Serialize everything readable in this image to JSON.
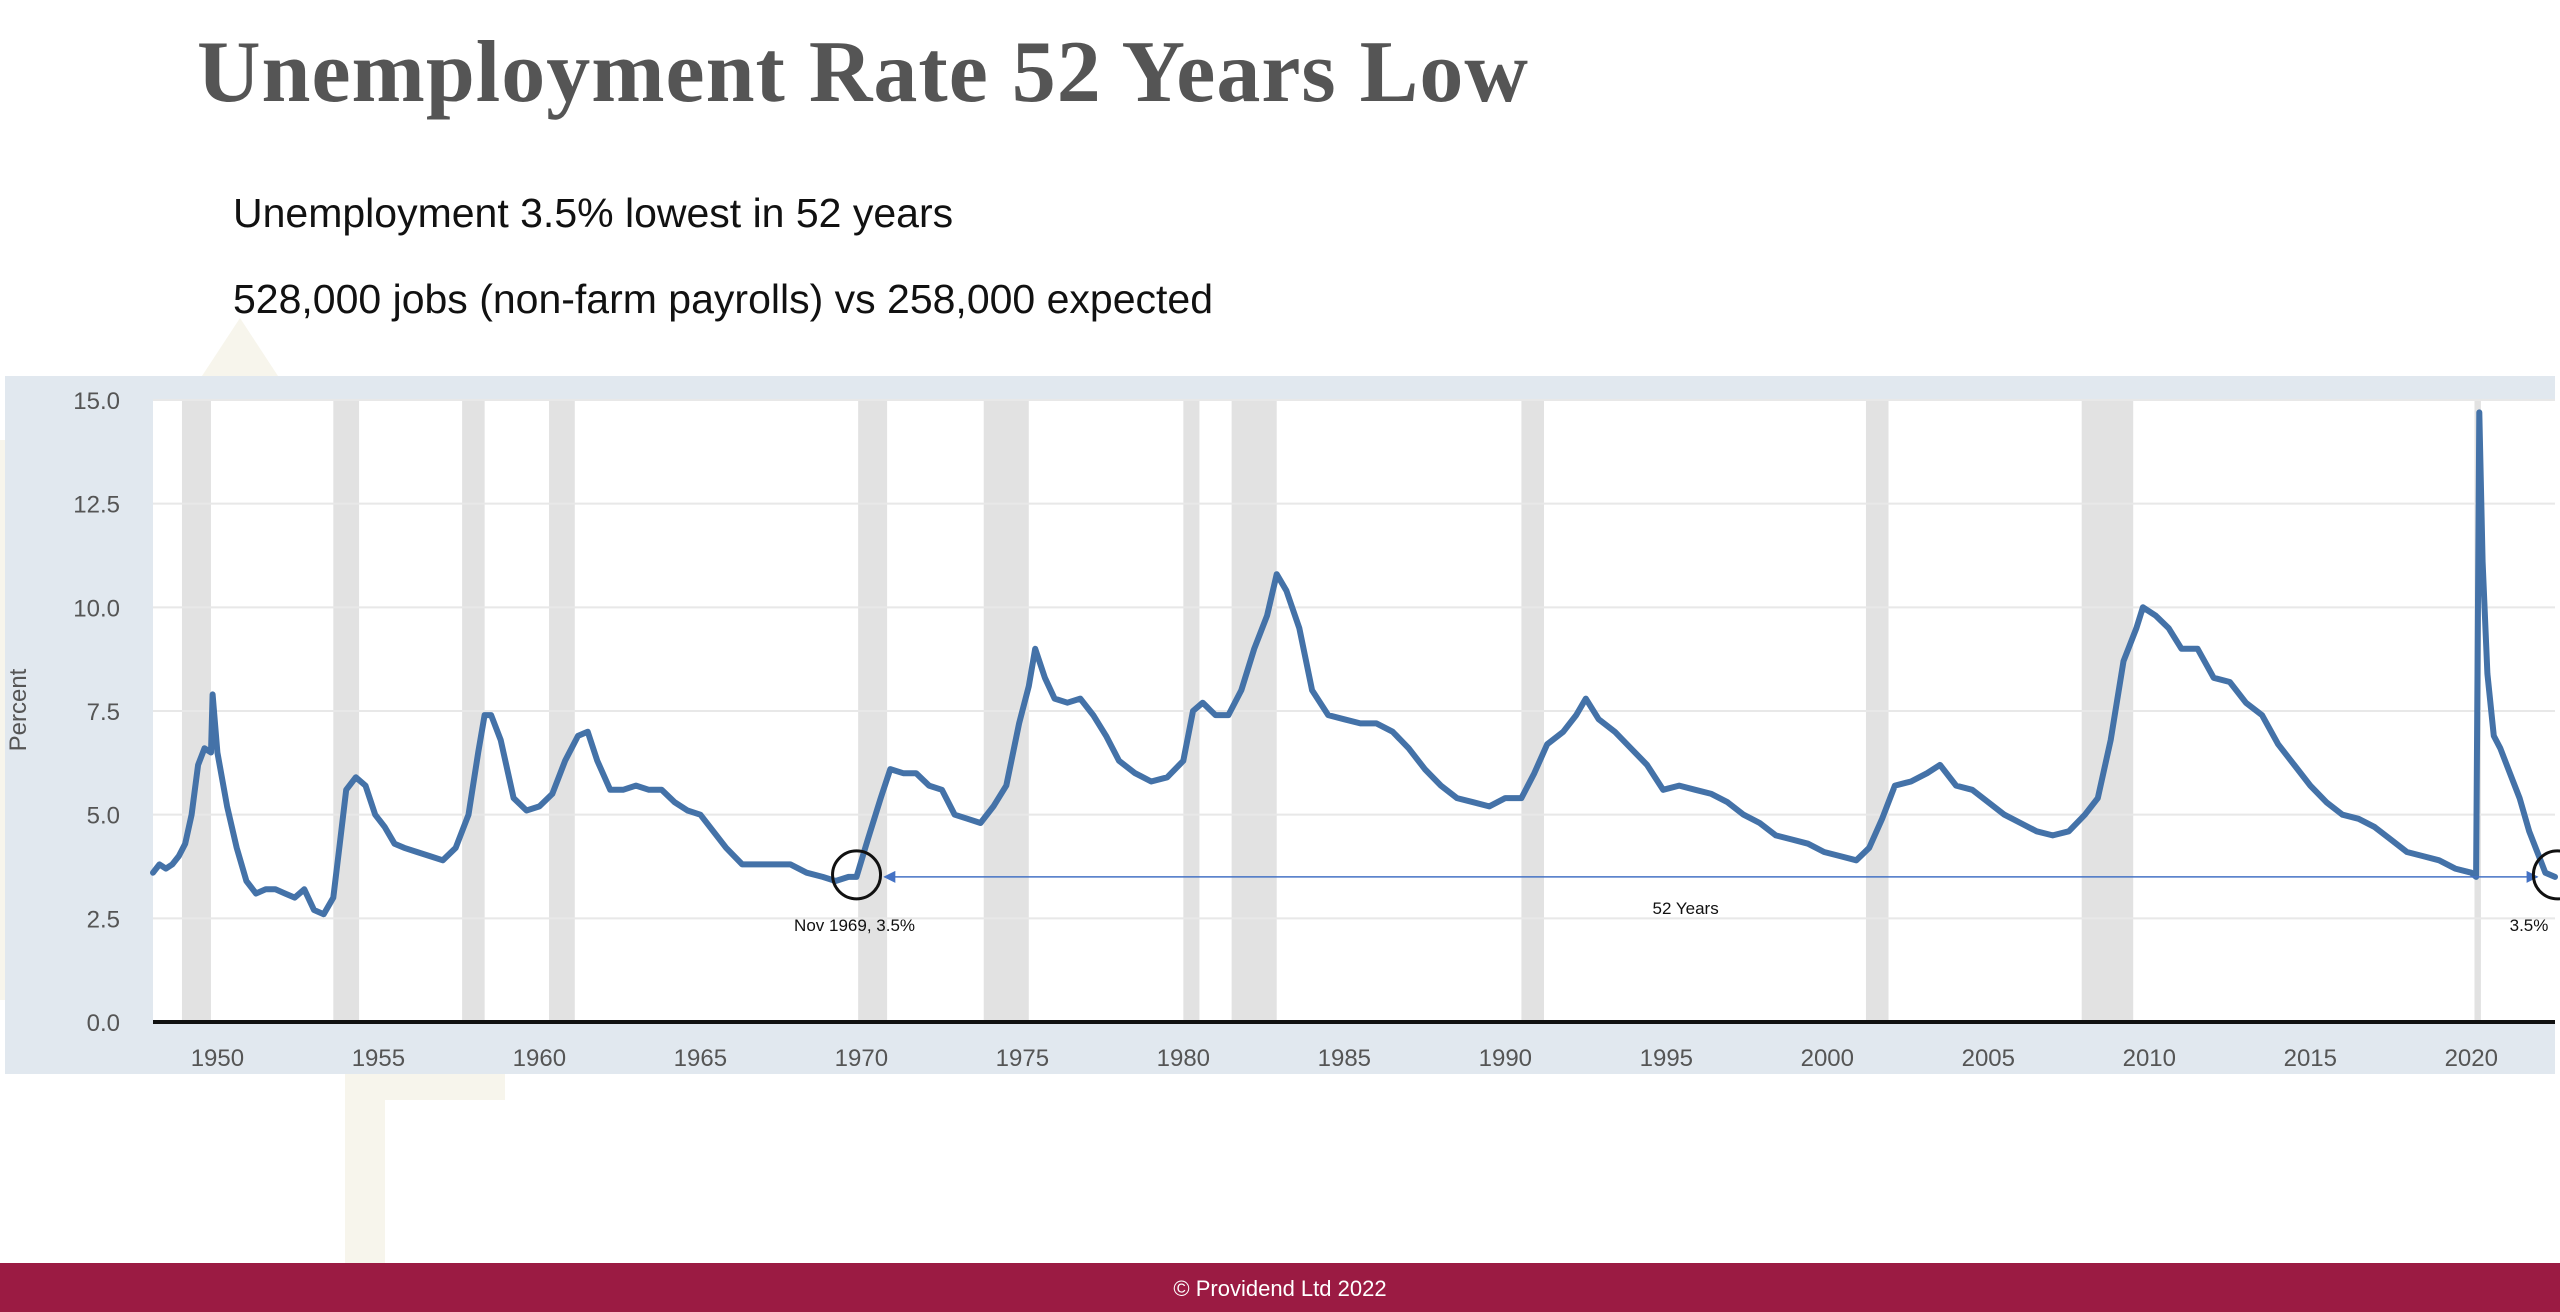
{
  "slide": {
    "title": "Unemployment Rate 52 Years Low",
    "bullets": [
      "Unemployment 3.5% lowest in 52 years",
      "528,000 jobs (non-farm payrolls) vs 258,000 expected"
    ],
    "footer": "© Providend Ltd 2022"
  },
  "colors": {
    "title": "#555555",
    "footer_bg": "#9b1b43",
    "series": "#4472a8",
    "recession": "#e2e2e2",
    "panel_bg": "#e1e8ef",
    "annotation": "#4472c4"
  },
  "chart_data": {
    "type": "line",
    "ylabel": "Percent",
    "xlabel": "",
    "ylim": [
      0,
      15
    ],
    "xlim": [
      1948,
      2022.6
    ],
    "y_ticks": [
      "15.0",
      "12.5",
      "10.0",
      "7.5",
      "5.0",
      "2.5",
      "0.0"
    ],
    "x_ticks": [
      "1950",
      "1955",
      "1960",
      "1965",
      "1970",
      "1975",
      "1980",
      "1985",
      "1990",
      "1995",
      "2000",
      "2005",
      "2010",
      "2015",
      "2020"
    ],
    "grid": true,
    "recessions": [
      [
        1948.9,
        1949.8
      ],
      [
        1953.6,
        1954.4
      ],
      [
        1957.6,
        1958.3
      ],
      [
        1960.3,
        1961.1
      ],
      [
        1969.9,
        1970.8
      ],
      [
        1973.8,
        1975.2
      ],
      [
        1980.0,
        1980.5
      ],
      [
        1981.5,
        1982.9
      ],
      [
        1990.5,
        1991.2
      ],
      [
        2001.2,
        2001.9
      ],
      [
        2007.9,
        2009.5
      ],
      [
        2020.1,
        2020.3
      ]
    ],
    "series": [
      {
        "x": [
          1948.0,
          1948.2,
          1948.4,
          1948.6,
          1948.8,
          1949.0,
          1949.2,
          1949.4,
          1949.6,
          1949.8,
          1949.85,
          1950.0,
          1950.3,
          1950.6,
          1950.9,
          1951.2,
          1951.5,
          1951.8,
          1952.1,
          1952.4,
          1952.7,
          1953.0,
          1953.3,
          1953.6,
          1953.8,
          1954.0,
          1954.3,
          1954.6,
          1954.9,
          1955.2,
          1955.5,
          1955.8,
          1956.2,
          1956.6,
          1957.0,
          1957.4,
          1957.8,
          1958.1,
          1958.3,
          1958.5,
          1958.8,
          1959.2,
          1959.6,
          1960.0,
          1960.4,
          1960.8,
          1961.2,
          1961.5,
          1961.8,
          1962.2,
          1962.6,
          1963.0,
          1963.4,
          1963.8,
          1964.2,
          1964.6,
          1965.0,
          1965.4,
          1965.8,
          1966.3,
          1966.8,
          1967.3,
          1967.8,
          1968.3,
          1968.8,
          1969.2,
          1969.6,
          1969.85,
          1970.2,
          1970.6,
          1970.9,
          1971.3,
          1971.7,
          1972.1,
          1972.5,
          1972.9,
          1973.3,
          1973.7,
          1974.1,
          1974.5,
          1974.9,
          1975.2,
          1975.4,
          1975.7,
          1976.0,
          1976.4,
          1976.8,
          1977.2,
          1977.6,
          1978.0,
          1978.5,
          1979.0,
          1979.5,
          1980.0,
          1980.3,
          1980.6,
          1981.0,
          1981.4,
          1981.8,
          1982.2,
          1982.6,
          1982.9,
          1983.2,
          1983.6,
          1984.0,
          1984.5,
          1985.0,
          1985.5,
          1986.0,
          1986.5,
          1987.0,
          1987.5,
          1988.0,
          1988.5,
          1989.0,
          1989.5,
          1990.0,
          1990.5,
          1990.9,
          1991.3,
          1991.8,
          1992.2,
          1992.5,
          1992.9,
          1993.4,
          1993.9,
          1994.4,
          1994.9,
          1995.4,
          1995.9,
          1996.4,
          1996.9,
          1997.4,
          1997.9,
          1998.4,
          1998.9,
          1999.4,
          1999.9,
          2000.4,
          2000.9,
          2001.3,
          2001.7,
          2002.1,
          2002.6,
          2003.1,
          2003.5,
          2004.0,
          2004.5,
          2005.0,
          2005.5,
          2006.0,
          2006.5,
          2007.0,
          2007.5,
          2008.0,
          2008.4,
          2008.8,
          2009.2,
          2009.6,
          2009.8,
          2010.2,
          2010.6,
          2011.0,
          2011.5,
          2012.0,
          2012.5,
          2013.0,
          2013.5,
          2014.0,
          2014.5,
          2015.0,
          2015.5,
          2016.0,
          2016.5,
          2017.0,
          2017.5,
          2018.0,
          2018.5,
          2019.0,
          2019.5,
          2020.0,
          2020.15,
          2020.25,
          2020.35,
          2020.5,
          2020.7,
          2020.9,
          2021.2,
          2021.5,
          2021.8,
          2022.1,
          2022.3,
          2022.6
        ],
        "y": [
          3.6,
          3.8,
          3.7,
          3.8,
          4.0,
          4.3,
          5.0,
          6.2,
          6.6,
          6.5,
          7.9,
          6.5,
          5.2,
          4.2,
          3.4,
          3.1,
          3.2,
          3.2,
          3.1,
          3.0,
          3.2,
          2.7,
          2.6,
          3.0,
          4.3,
          5.6,
          5.9,
          5.7,
          5.0,
          4.7,
          4.3,
          4.2,
          4.1,
          4.0,
          3.9,
          4.2,
          5.0,
          6.5,
          7.4,
          7.4,
          6.8,
          5.4,
          5.1,
          5.2,
          5.5,
          6.3,
          6.9,
          7.0,
          6.3,
          5.6,
          5.6,
          5.7,
          5.6,
          5.6,
          5.3,
          5.1,
          5.0,
          4.6,
          4.2,
          3.8,
          3.8,
          3.8,
          3.8,
          3.6,
          3.5,
          3.4,
          3.5,
          3.5,
          4.4,
          5.4,
          6.1,
          6.0,
          6.0,
          5.7,
          5.6,
          5.0,
          4.9,
          4.8,
          5.2,
          5.7,
          7.2,
          8.1,
          9.0,
          8.3,
          7.8,
          7.7,
          7.8,
          7.4,
          6.9,
          6.3,
          6.0,
          5.8,
          5.9,
          6.3,
          7.5,
          7.7,
          7.4,
          7.4,
          8.0,
          9.0,
          9.8,
          10.8,
          10.4,
          9.5,
          8.0,
          7.4,
          7.3,
          7.2,
          7.2,
          7.0,
          6.6,
          6.1,
          5.7,
          5.4,
          5.3,
          5.2,
          5.4,
          5.4,
          6.0,
          6.7,
          7.0,
          7.4,
          7.8,
          7.3,
          7.0,
          6.6,
          6.2,
          5.6,
          5.7,
          5.6,
          5.5,
          5.3,
          5.0,
          4.8,
          4.5,
          4.4,
          4.3,
          4.1,
          4.0,
          3.9,
          4.2,
          4.9,
          5.7,
          5.8,
          6.0,
          6.2,
          5.7,
          5.6,
          5.3,
          5.0,
          4.8,
          4.6,
          4.5,
          4.6,
          5.0,
          5.4,
          6.8,
          8.7,
          9.5,
          10.0,
          9.8,
          9.5,
          9.0,
          9.0,
          8.3,
          8.2,
          7.7,
          7.4,
          6.7,
          6.2,
          5.7,
          5.3,
          5.0,
          4.9,
          4.7,
          4.4,
          4.1,
          4.0,
          3.9,
          3.7,
          3.6,
          3.5,
          14.7,
          11.1,
          8.4,
          6.9,
          6.6,
          6.0,
          5.4,
          4.6,
          4.0,
          3.6,
          3.5
        ]
      }
    ],
    "annotations": {
      "start_label": "Nov 1969, 3.5%",
      "span_label": "52 Years",
      "end_label": "3.5%",
      "start_x": 1969.85,
      "end_x": 2022.55,
      "level": 3.5
    }
  }
}
